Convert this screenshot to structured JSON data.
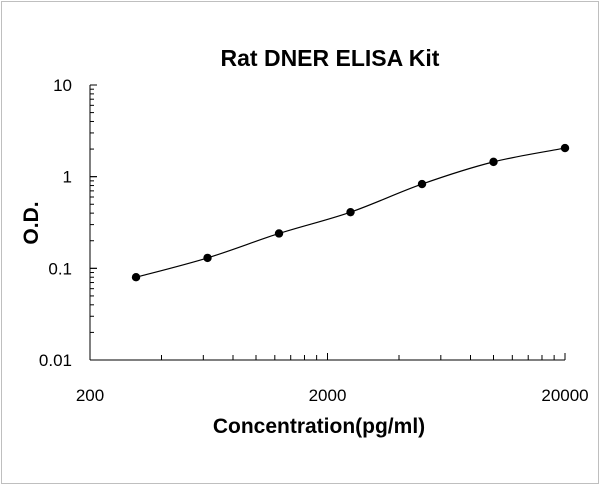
{
  "chart_data": {
    "type": "scatter",
    "title": "Rat DNER ELISA Kit",
    "xlabel": "Concentration(pg/ml)",
    "ylabel": "O.D.",
    "x_scale": "log",
    "y_scale": "log",
    "xlim": [
      200,
      20000
    ],
    "ylim": [
      0.01,
      10
    ],
    "x_tick_labels": [
      "200",
      "2000",
      "20000"
    ],
    "y_tick_labels": [
      "10",
      "1",
      "0.1",
      "0.01"
    ],
    "grid": false,
    "legend": "none",
    "series": [
      {
        "x": [
          312.5,
          625,
          1250,
          2500,
          5000,
          10000,
          20000
        ],
        "y": [
          0.08,
          0.13,
          0.24,
          0.41,
          0.83,
          1.45,
          2.05
        ]
      }
    ],
    "curve": "smooth fitted line through points",
    "colors": {
      "points": "#000000",
      "line": "#000000",
      "axes": "#000000"
    }
  }
}
